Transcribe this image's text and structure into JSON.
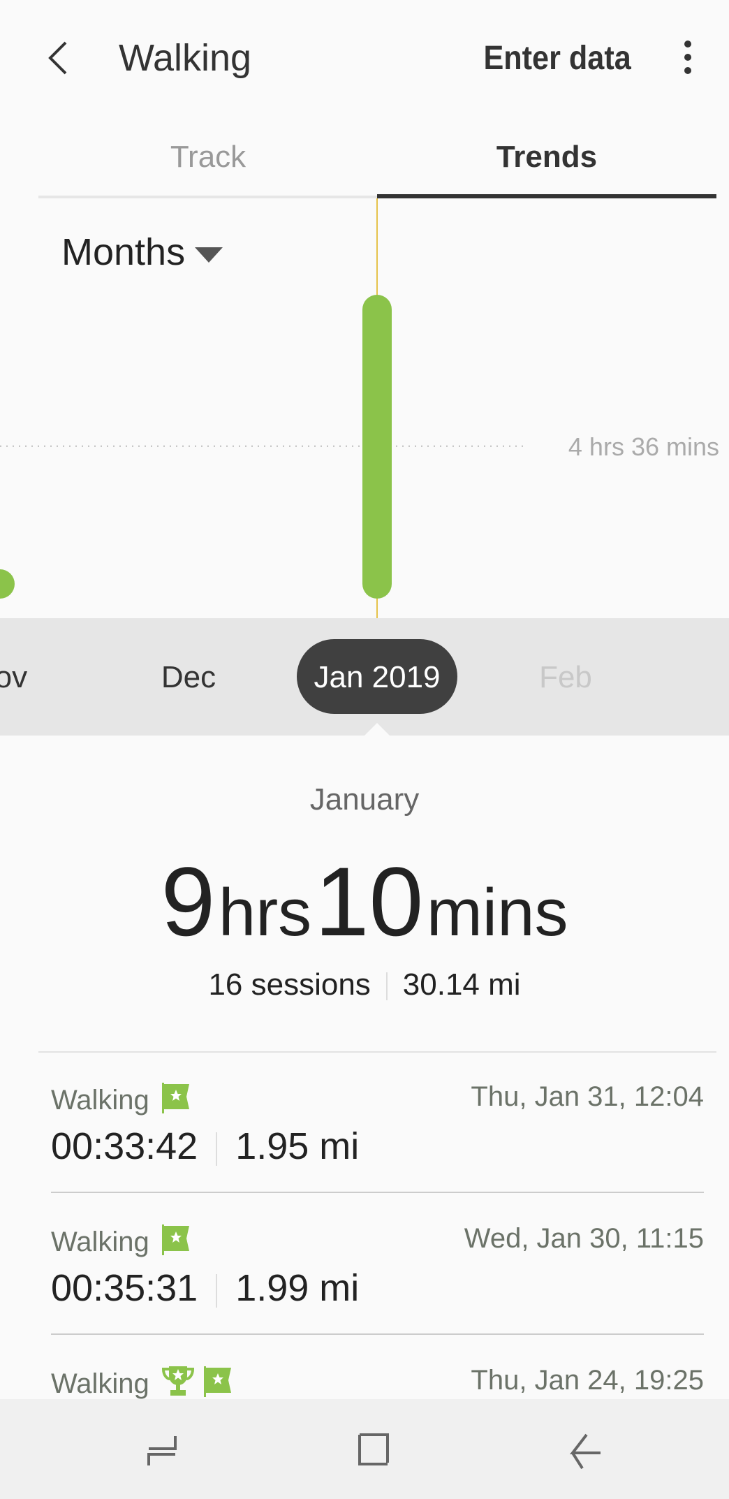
{
  "header": {
    "title": "Walking",
    "enter_data": "Enter data"
  },
  "tabs": [
    {
      "label": "Track",
      "active": false
    },
    {
      "label": "Trends",
      "active": true
    }
  ],
  "period_selector": {
    "value": "Months"
  },
  "colors": {
    "bar": "#8bc34a",
    "selection_line": "#e6c34a",
    "pill": "#404040"
  },
  "chart_data": {
    "type": "bar",
    "categories": [
      "Nov",
      "Dec",
      "Jan 2019",
      "Feb"
    ],
    "values_hours": [
      0.03,
      0,
      9.17,
      null
    ],
    "average_label": "4 hrs 36 mins",
    "average_hours": 4.6,
    "selected": "Jan 2019",
    "grid": false
  },
  "timeline": {
    "labels": [
      "Nov",
      "Dec",
      "Jan 2019",
      "Feb"
    ],
    "selected_index": 2
  },
  "summary": {
    "month": "January",
    "hours": "9",
    "hours_unit": "hrs",
    "minutes": "10",
    "minutes_unit": "mins",
    "sessions": "16 sessions",
    "distance": "30.14 mi"
  },
  "sessions": [
    {
      "label": "Walking",
      "icons": [
        "flag-icon"
      ],
      "date": "Thu, Jan 31, 12:04",
      "duration": "00:33:42",
      "distance": "1.95 mi"
    },
    {
      "label": "Walking",
      "icons": [
        "flag-icon"
      ],
      "date": "Wed, Jan 30, 11:15",
      "duration": "00:35:31",
      "distance": "1.99 mi"
    },
    {
      "label": "Walking",
      "icons": [
        "trophy-icon",
        "flag-icon"
      ],
      "date": "Thu, Jan 24, 19:25",
      "duration": "",
      "distance": ""
    }
  ]
}
